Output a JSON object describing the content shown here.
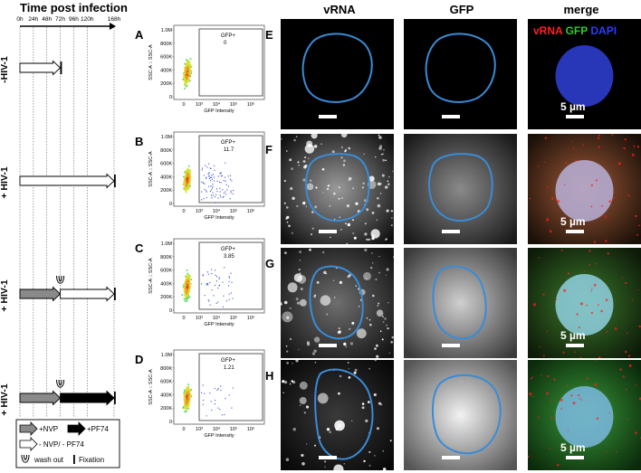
{
  "timeline": {
    "title": "Time post infection",
    "ticks": [
      "0h",
      "24h",
      "48h",
      "72h",
      "96h",
      "120h",
      "168h"
    ],
    "tick_values_h": [
      0,
      24,
      48,
      72,
      96,
      120,
      168
    ],
    "conditions": [
      {
        "label": "-HIV-1",
        "segments": [
          {
            "type": "none",
            "from_h": 0,
            "to_h": 72
          }
        ],
        "washout": false
      },
      {
        "label": "+ HIV-1",
        "segments": [
          {
            "type": "none",
            "from_h": 0,
            "to_h": 168
          }
        ],
        "washout": false
      },
      {
        "label": "+ HIV-1",
        "segments": [
          {
            "type": "nvp",
            "from_h": 0,
            "to_h": 72
          },
          {
            "type": "none",
            "from_h": 72,
            "to_h": 168
          }
        ],
        "washout": true
      },
      {
        "label": "+ HIV-1",
        "segments": [
          {
            "type": "nvp",
            "from_h": 0,
            "to_h": 72
          },
          {
            "type": "pf74",
            "from_h": 72,
            "to_h": 168
          }
        ],
        "washout": true
      }
    ],
    "legend": {
      "nvp": "+NVP",
      "pf74": "+PF74",
      "none": "- NVP/ - PF74",
      "washout": "wash out",
      "fixation": "Fixation"
    }
  },
  "flow": {
    "y_axis_label": "SSC-A :: SSC-A",
    "x_axis_label": "GFP Intensity",
    "y_ticks": [
      "1.0M",
      "800K",
      "600K",
      "400K",
      "200K",
      "0"
    ],
    "x_ticks": [
      "0",
      "10³",
      "10⁴",
      "10⁵",
      "10⁶"
    ],
    "gate_label": "GFP+",
    "panels": [
      {
        "letter": "A",
        "gfp_pos_percent": "0"
      },
      {
        "letter": "B",
        "gfp_pos_percent": "11.7"
      },
      {
        "letter": "C",
        "gfp_pos_percent": "3.85"
      },
      {
        "letter": "D",
        "gfp_pos_percent": "1.21"
      }
    ]
  },
  "microscopy": {
    "columns": [
      "vRNA",
      "GFP",
      "merge"
    ],
    "rows": [
      {
        "letter": "E"
      },
      {
        "letter": "F"
      },
      {
        "letter": "G"
      },
      {
        "letter": "H"
      }
    ],
    "merge_legend": {
      "vrna": "vRNA",
      "gfp": "GFP",
      "dapi": "DAPI"
    },
    "scale_label": "5 µm",
    "colors": {
      "vrna": "#ff2020",
      "gfp": "#34c534",
      "dapi": "#2a3dff",
      "outline": "#3a8bd6"
    }
  }
}
